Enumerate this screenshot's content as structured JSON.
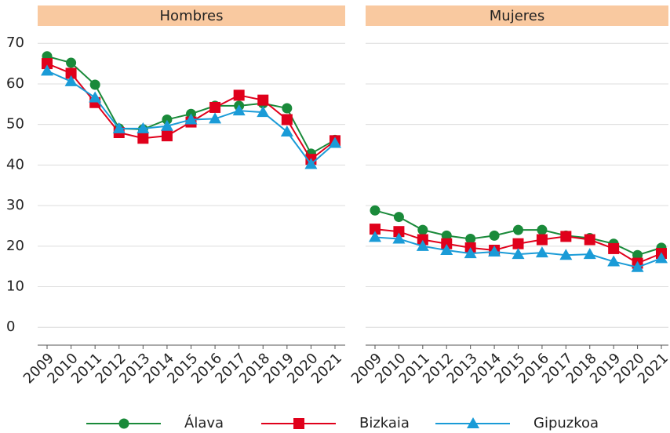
{
  "chart_data": [
    {
      "type": "line",
      "title": "Hombres",
      "categories": [
        "2009",
        "2010",
        "2011",
        "2012",
        "2013",
        "2014",
        "2015",
        "2016",
        "2017",
        "2018",
        "2019",
        "2020",
        "2021"
      ],
      "series": [
        {
          "name": "Álava",
          "color": "#1a8a3a",
          "marker": "circle",
          "values": [
            66.8,
            65.2,
            59.8,
            49,
            48.8,
            51.2,
            52.6,
            54.6,
            54.6,
            55.2,
            54,
            42.8,
            46.2
          ]
        },
        {
          "name": "Bizkaia",
          "color": "#e0001b",
          "marker": "square",
          "values": [
            65,
            62.6,
            55.4,
            48,
            46.6,
            47.2,
            50.6,
            54.2,
            57.2,
            56,
            51.2,
            41.4,
            46
          ]
        },
        {
          "name": "Gipuzkoa",
          "color": "#1a9bd7",
          "marker": "triangle",
          "values": [
            63.2,
            60.6,
            56.6,
            49,
            49,
            49.6,
            51.2,
            51.4,
            53.4,
            53,
            48.2,
            40.2,
            45.4
          ]
        }
      ],
      "ylim": [
        -4.4,
        74.3
      ],
      "yticks": [
        0,
        10,
        20,
        30,
        40,
        50,
        60,
        70
      ],
      "grid": true
    },
    {
      "type": "line",
      "title": "Mujeres",
      "categories": [
        "2009",
        "2010",
        "2011",
        "2012",
        "2013",
        "2014",
        "2015",
        "2016",
        "2017",
        "2018",
        "2019",
        "2020",
        "2021"
      ],
      "series": [
        {
          "color": "#1a8a3a",
          "marker": "circle",
          "values": [
            28.8,
            27.2,
            24,
            22.6,
            21.8,
            22.6,
            24,
            24,
            22.6,
            22,
            20.6,
            17.8,
            19.6
          ]
        },
        {
          "color": "#e0001b",
          "marker": "square",
          "values": [
            24.2,
            23.6,
            21.6,
            20.6,
            19.6,
            19,
            20.6,
            21.6,
            22.4,
            21.6,
            19.4,
            15.8,
            18.2
          ]
        },
        {
          "color": "#1a9bd7",
          "marker": "triangle",
          "values": [
            22.2,
            21.8,
            20,
            19,
            18.2,
            18.6,
            18,
            18.4,
            17.8,
            18,
            16.2,
            14.8,
            17
          ]
        }
      ],
      "ylim": [
        -4.4,
        74.3
      ],
      "yticks": [
        0,
        10,
        20,
        30,
        40,
        50,
        60,
        70
      ],
      "grid": true
    }
  ]
}
